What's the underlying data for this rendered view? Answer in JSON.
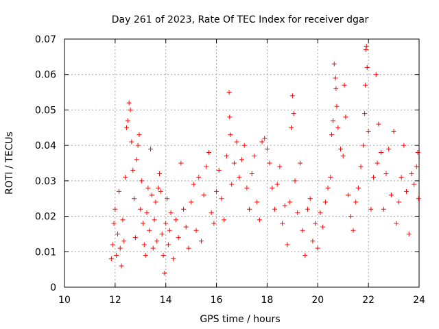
{
  "chart_data": {
    "type": "scatter",
    "title": "Day 261 of 2023, Rate Of TEC Index for receiver dgar",
    "xlabel": "GPS time / hours",
    "ylabel": "ROTI / TECUs",
    "xlim": [
      10,
      24
    ],
    "ylim": [
      0,
      0.07
    ],
    "xticks": [
      "10",
      "12",
      "14",
      "16",
      "18",
      "20",
      "22",
      "24"
    ],
    "yticks": [
      "0",
      "0.01",
      "0.02",
      "0.03",
      "0.04",
      "0.05",
      "0.06",
      "0.07"
    ],
    "grid": true,
    "marker": "+",
    "color": "#ff0000",
    "series": [
      {
        "values": [
          [
            11.85,
            0.008
          ],
          [
            11.9,
            0.012
          ],
          [
            11.95,
            0.018
          ],
          [
            12.0,
            0.022
          ],
          [
            12.05,
            0.009
          ],
          [
            12.1,
            0.015
          ],
          [
            12.15,
            0.027
          ],
          [
            12.2,
            0.011
          ],
          [
            12.25,
            0.006
          ],
          [
            12.3,
            0.019
          ],
          [
            12.35,
            0.013
          ],
          [
            12.4,
            0.031
          ],
          [
            12.45,
            0.045
          ],
          [
            12.5,
            0.047
          ],
          [
            12.55,
            0.052
          ],
          [
            12.6,
            0.05
          ],
          [
            12.65,
            0.041
          ],
          [
            12.7,
            0.033
          ],
          [
            12.75,
            0.025
          ],
          [
            12.8,
            0.014
          ],
          [
            12.85,
            0.036
          ],
          [
            12.9,
            0.04
          ],
          [
            12.95,
            0.043
          ],
          [
            13.0,
            0.022
          ],
          [
            13.05,
            0.03
          ],
          [
            13.1,
            0.018
          ],
          [
            13.15,
            0.012
          ],
          [
            13.2,
            0.009
          ],
          [
            13.25,
            0.021
          ],
          [
            13.3,
            0.028
          ],
          [
            13.35,
            0.016
          ],
          [
            13.4,
            0.039
          ],
          [
            13.45,
            0.026
          ],
          [
            13.5,
            0.011
          ],
          [
            13.55,
            0.019
          ],
          [
            13.6,
            0.024
          ],
          [
            13.65,
            0.013
          ],
          [
            13.7,
            0.028
          ],
          [
            13.75,
            0.032
          ],
          [
            13.8,
            0.027
          ],
          [
            13.85,
            0.015
          ],
          [
            13.9,
            0.009
          ],
          [
            13.95,
            0.004
          ],
          [
            14.0,
            0.018
          ],
          [
            14.05,
            0.025
          ],
          [
            14.1,
            0.012
          ],
          [
            14.15,
            0.016
          ],
          [
            14.2,
            0.021
          ],
          [
            14.3,
            0.008
          ],
          [
            14.4,
            0.019
          ],
          [
            14.5,
            0.014
          ],
          [
            14.6,
            0.035
          ],
          [
            14.7,
            0.022
          ],
          [
            14.8,
            0.017
          ],
          [
            14.9,
            0.011
          ],
          [
            15.0,
            0.024
          ],
          [
            15.1,
            0.029
          ],
          [
            15.2,
            0.016
          ],
          [
            15.3,
            0.031
          ],
          [
            15.4,
            0.013
          ],
          [
            15.5,
            0.026
          ],
          [
            15.6,
            0.034
          ],
          [
            15.7,
            0.038
          ],
          [
            15.8,
            0.021
          ],
          [
            15.9,
            0.018
          ],
          [
            16.0,
            0.027
          ],
          [
            16.1,
            0.033
          ],
          [
            16.2,
            0.025
          ],
          [
            16.3,
            0.019
          ],
          [
            16.4,
            0.037
          ],
          [
            16.5,
            0.055
          ],
          [
            16.52,
            0.048
          ],
          [
            16.55,
            0.043
          ],
          [
            16.6,
            0.029
          ],
          [
            16.7,
            0.035
          ],
          [
            16.8,
            0.041
          ],
          [
            16.9,
            0.031
          ],
          [
            17.0,
            0.036
          ],
          [
            17.1,
            0.04
          ],
          [
            17.2,
            0.028
          ],
          [
            17.3,
            0.022
          ],
          [
            17.4,
            0.032
          ],
          [
            17.5,
            0.037
          ],
          [
            17.6,
            0.024
          ],
          [
            17.7,
            0.019
          ],
          [
            17.8,
            0.041
          ],
          [
            17.9,
            0.042
          ],
          [
            18.0,
            0.039
          ],
          [
            18.1,
            0.035
          ],
          [
            18.2,
            0.028
          ],
          [
            18.3,
            0.022
          ],
          [
            18.4,
            0.029
          ],
          [
            18.5,
            0.034
          ],
          [
            18.6,
            0.018
          ],
          [
            18.7,
            0.023
          ],
          [
            18.8,
            0.012
          ],
          [
            18.9,
            0.024
          ],
          [
            18.95,
            0.045
          ],
          [
            19.0,
            0.054
          ],
          [
            19.05,
            0.049
          ],
          [
            19.1,
            0.03
          ],
          [
            19.2,
            0.021
          ],
          [
            19.3,
            0.035
          ],
          [
            19.4,
            0.016
          ],
          [
            19.5,
            0.009
          ],
          [
            19.6,
            0.022
          ],
          [
            19.7,
            0.025
          ],
          [
            19.8,
            0.013
          ],
          [
            19.9,
            0.018
          ],
          [
            20.0,
            0.011
          ],
          [
            20.1,
            0.021
          ],
          [
            20.2,
            0.017
          ],
          [
            20.3,
            0.024
          ],
          [
            20.4,
            0.028
          ],
          [
            20.5,
            0.031
          ],
          [
            20.55,
            0.043
          ],
          [
            20.6,
            0.047
          ],
          [
            20.65,
            0.063
          ],
          [
            20.7,
            0.059
          ],
          [
            20.72,
            0.056
          ],
          [
            20.75,
            0.051
          ],
          [
            20.8,
            0.045
          ],
          [
            20.9,
            0.039
          ],
          [
            21.0,
            0.037
          ],
          [
            21.05,
            0.057
          ],
          [
            21.1,
            0.048
          ],
          [
            21.2,
            0.026
          ],
          [
            21.3,
            0.02
          ],
          [
            21.4,
            0.016
          ],
          [
            21.5,
            0.024
          ],
          [
            21.6,
            0.028
          ],
          [
            21.7,
            0.034
          ],
          [
            21.8,
            0.04
          ],
          [
            21.85,
            0.049
          ],
          [
            21.88,
            0.057
          ],
          [
            21.9,
            0.067
          ],
          [
            21.92,
            0.068
          ],
          [
            21.95,
            0.062
          ],
          [
            22.0,
            0.044
          ],
          [
            22.1,
            0.022
          ],
          [
            22.2,
            0.031
          ],
          [
            22.3,
            0.06
          ],
          [
            22.35,
            0.035
          ],
          [
            22.4,
            0.046
          ],
          [
            22.5,
            0.038
          ],
          [
            22.6,
            0.022
          ],
          [
            22.7,
            0.032
          ],
          [
            22.8,
            0.039
          ],
          [
            22.9,
            0.026
          ],
          [
            23.0,
            0.044
          ],
          [
            23.1,
            0.018
          ],
          [
            23.2,
            0.024
          ],
          [
            23.3,
            0.031
          ],
          [
            23.4,
            0.04
          ],
          [
            23.5,
            0.027
          ],
          [
            23.6,
            0.015
          ],
          [
            23.7,
            0.032
          ],
          [
            23.8,
            0.029
          ],
          [
            23.9,
            0.034
          ],
          [
            23.95,
            0.038
          ],
          [
            23.98,
            0.025
          ]
        ]
      }
    ]
  }
}
